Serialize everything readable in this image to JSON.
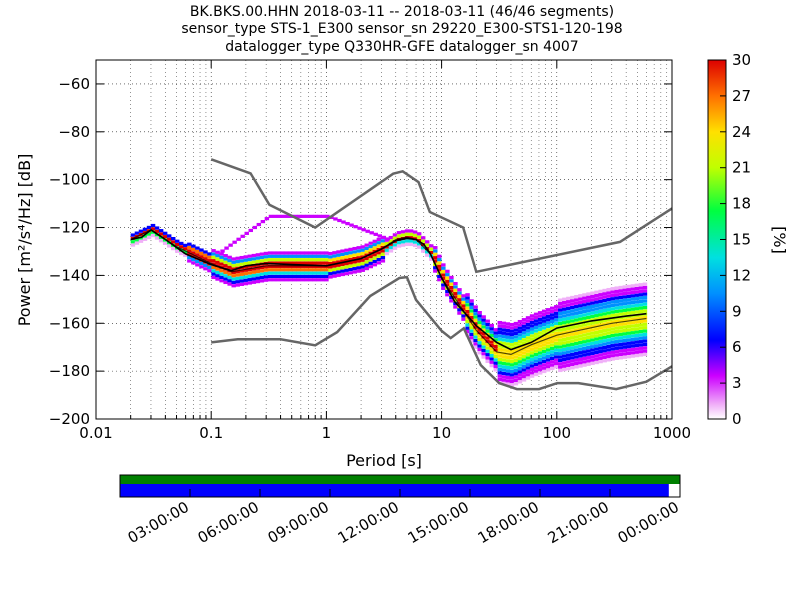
{
  "titles": [
    "BK.BKS.00.HHN   2018-03-11 -- 2018-03-11  (46/46 segments)",
    "sensor_type STS-1_E300 sensor_sn 29220_E300-STS1-120-198",
    "datalogger_type Q330HR-GFE datalogger_sn 4007"
  ],
  "chart_data": {
    "type": "heatmap",
    "xlabel": "Period [s]",
    "ylabel": "Power [m²/s⁴/Hz] [dB]",
    "xscale": "log",
    "xlim": [
      0.01,
      1000
    ],
    "ylim": [
      -200,
      -50
    ],
    "x_ticks": [
      {
        "value": 0.01,
        "label": "0.01"
      },
      {
        "value": 0.1,
        "label": "0.1"
      },
      {
        "value": 1,
        "label": "1"
      },
      {
        "value": 10,
        "label": "10"
      },
      {
        "value": 100,
        "label": "100"
      },
      {
        "value": 1000,
        "label": "1000"
      }
    ],
    "y_ticks": [
      {
        "value": -60,
        "label": "−60"
      },
      {
        "value": -80,
        "label": "−80"
      },
      {
        "value": -100,
        "label": "−100"
      },
      {
        "value": -120,
        "label": "−120"
      },
      {
        "value": -140,
        "label": "−140"
      },
      {
        "value": -160,
        "label": "−160"
      },
      {
        "value": -180,
        "label": "−180"
      },
      {
        "value": -200,
        "label": "−200"
      }
    ],
    "grid": true,
    "colorbar": {
      "label": "[%]",
      "range": [
        0,
        30
      ],
      "ticks": [
        "0",
        "3",
        "6",
        "9",
        "12",
        "15",
        "18",
        "21",
        "24",
        "27",
        "30"
      ]
    },
    "high_noise_model": [
      [
        0.1,
        -91.5
      ],
      [
        0.22,
        -97.4
      ],
      [
        0.32,
        -110.5
      ],
      [
        0.8,
        -120
      ],
      [
        3.8,
        -97.5
      ],
      [
        4.6,
        -96.5
      ],
      [
        6.3,
        -101
      ],
      [
        7.9,
        -113.5
      ],
      [
        15.4,
        -120
      ],
      [
        20,
        -138.5
      ],
      [
        354,
        -126
      ],
      [
        1000,
        -112
      ]
    ],
    "low_noise_model": [
      [
        0.1,
        -168
      ],
      [
        0.17,
        -166.7
      ],
      [
        0.4,
        -166.7
      ],
      [
        0.8,
        -169.2
      ],
      [
        1.24,
        -163.7
      ],
      [
        2.4,
        -148.6
      ],
      [
        4.3,
        -141.1
      ],
      [
        5,
        -140.7
      ],
      [
        6,
        -150.2
      ],
      [
        10,
        -163.2
      ],
      [
        12,
        -166.2
      ],
      [
        15.6,
        -162.1
      ],
      [
        21.9,
        -177.5
      ],
      [
        31.6,
        -185
      ],
      [
        45,
        -187.5
      ],
      [
        70,
        -187.5
      ],
      [
        101,
        -185
      ],
      [
        154,
        -185
      ],
      [
        328,
        -187.5
      ],
      [
        600,
        -184.4
      ],
      [
        1000,
        -178
      ]
    ],
    "mean_curve": [
      [
        0.02,
        -125
      ],
      [
        0.025,
        -124
      ],
      [
        0.03,
        -121
      ],
      [
        0.04,
        -125
      ],
      [
        0.06,
        -131
      ],
      [
        0.1,
        -135.5
      ],
      [
        0.15,
        -138
      ],
      [
        0.2,
        -136
      ],
      [
        0.3,
        -135
      ],
      [
        0.5,
        -135.5
      ],
      [
        1,
        -136
      ],
      [
        2,
        -133
      ],
      [
        3,
        -129
      ],
      [
        4,
        -125.5
      ],
      [
        5,
        -124.5
      ],
      [
        6,
        -125
      ],
      [
        7,
        -127
      ],
      [
        8,
        -131
      ],
      [
        10,
        -141
      ],
      [
        13,
        -151
      ],
      [
        20,
        -161
      ],
      [
        30,
        -168
      ],
      [
        40,
        -171
      ],
      [
        60,
        -168
      ],
      [
        100,
        -162
      ],
      [
        200,
        -159
      ],
      [
        400,
        -157
      ],
      [
        600,
        -156
      ]
    ],
    "mode_curve": [
      [
        0.02,
        -125
      ],
      [
        0.03,
        -121
      ],
      [
        0.05,
        -128
      ],
      [
        0.1,
        -135
      ],
      [
        0.15,
        -138.5
      ],
      [
        0.3,
        -136
      ],
      [
        1,
        -136
      ],
      [
        2,
        -133
      ],
      [
        3,
        -129
      ],
      [
        4,
        -125
      ],
      [
        5,
        -124
      ],
      [
        6,
        -125
      ],
      [
        8,
        -131
      ],
      [
        10,
        -141
      ],
      [
        20,
        -163
      ],
      [
        30,
        -172
      ],
      [
        40,
        -173
      ],
      [
        60,
        -169
      ],
      [
        100,
        -165
      ],
      [
        300,
        -160
      ],
      [
        600,
        -158
      ]
    ],
    "time_axis": {
      "ticks": [
        "03:00:00",
        "06:00:00",
        "09:00:00",
        "12:00:00",
        "15:00:00",
        "18:00:00",
        "21:00:00",
        "00:00:00"
      ],
      "coverage_fraction": 0.98
    }
  }
}
